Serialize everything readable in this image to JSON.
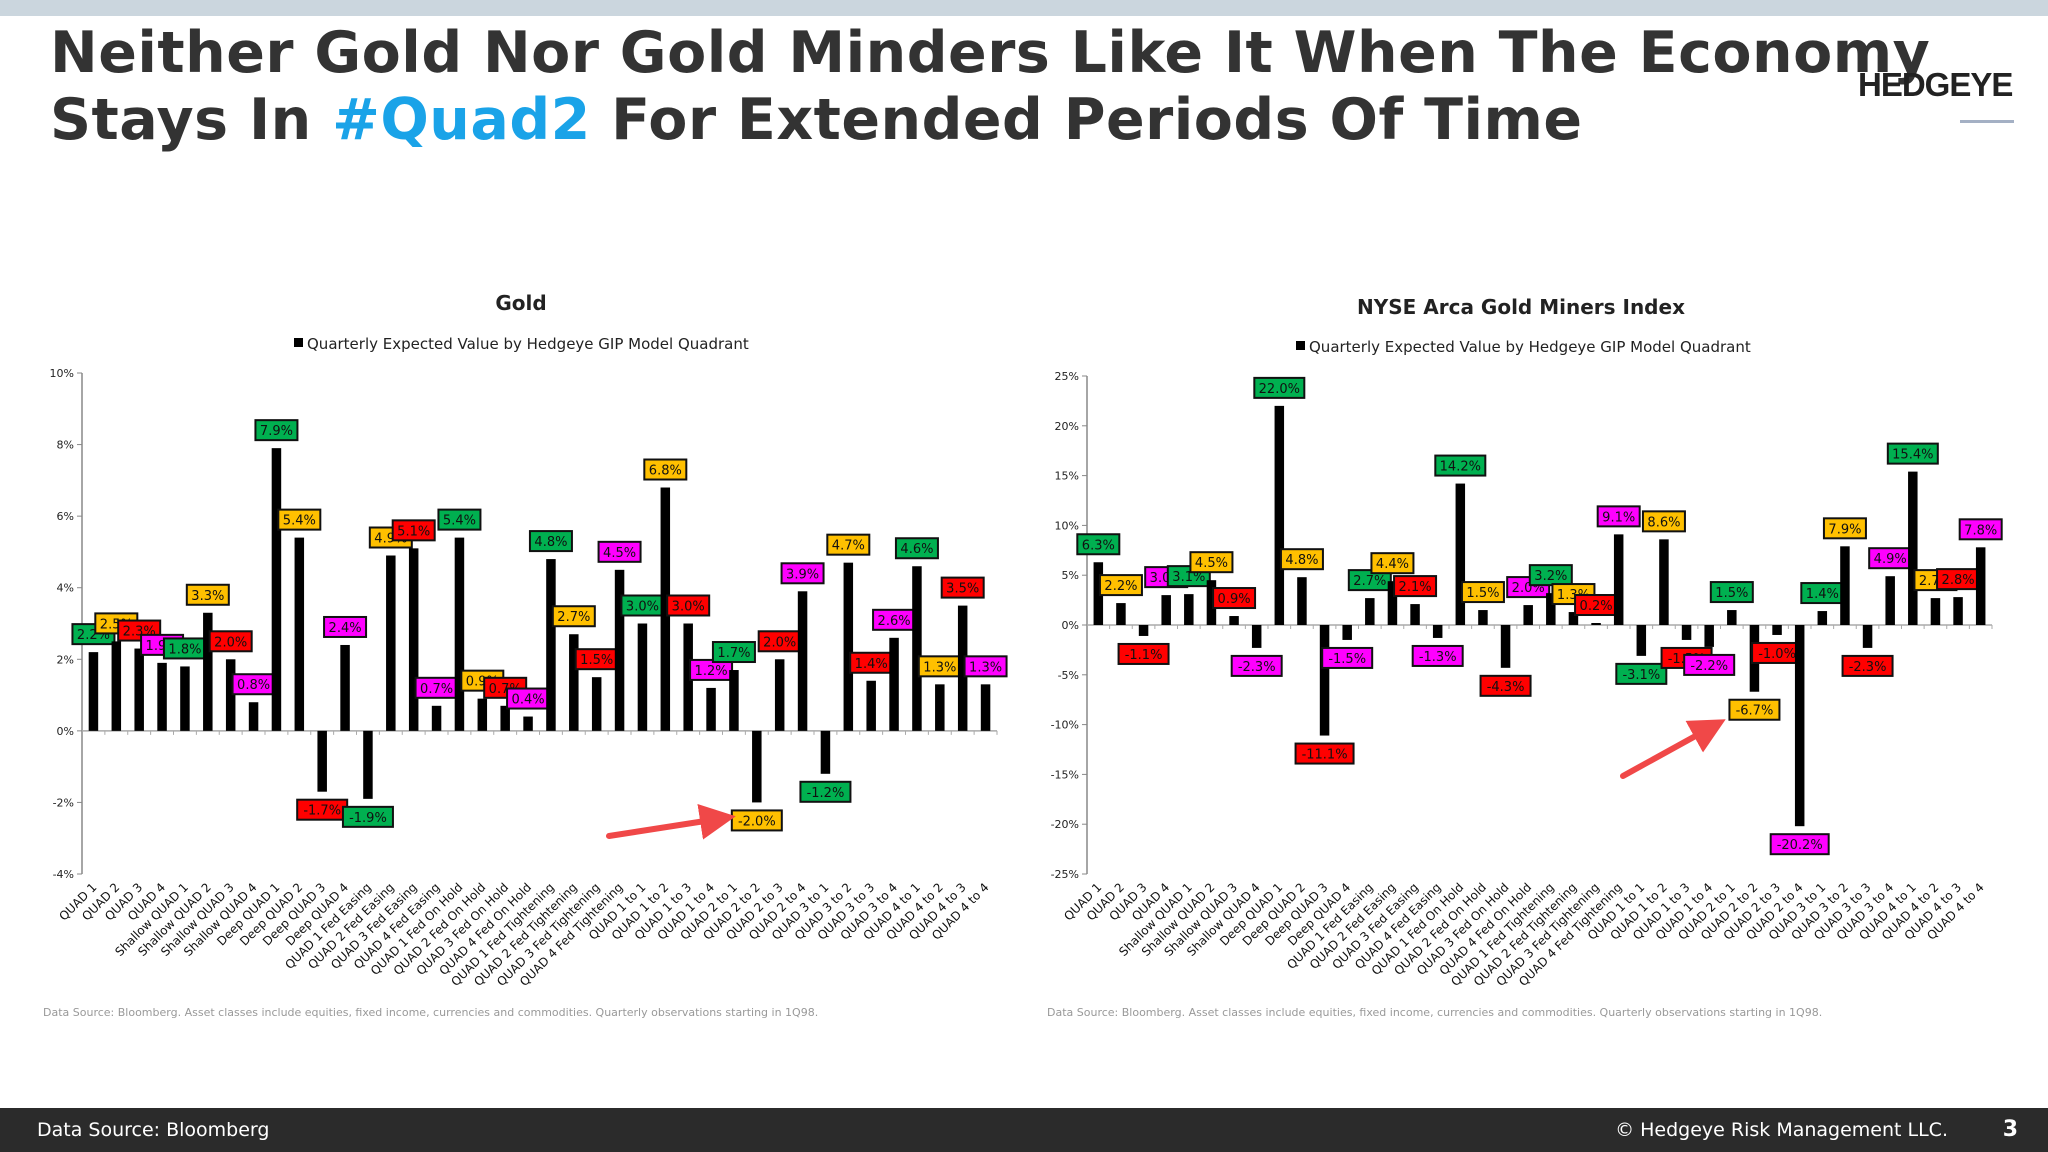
{
  "header": {
    "title_line1": "Neither Gold Nor Gold Minders Like It When The Economy",
    "title_line2_pre": "Stays In ",
    "title_highlight": "#Quad2",
    "title_line2_post": " For Extended Periods Of Time",
    "highlight_color": "#1aa3e8",
    "logo": "HEDGEYE"
  },
  "footer": {
    "source": "Data Source: Bloomberg",
    "copyright": "© Hedgeye Risk Management LLC.",
    "page": "3"
  },
  "quadrant_label_colors": [
    "#00b050",
    "#ffc000",
    "#ff0000",
    "#ff00ff"
  ],
  "chart_data": [
    {
      "type": "bar",
      "title": "Gold",
      "legend": "Quarterly Expected Value by Hedgeye GIP Model Quadrant",
      "legend_position": "top",
      "footnote": "Data Source: Bloomberg. Asset classes  include equities, fixed income, currencies and commodities. Quarterly observations starting in 1Q98.",
      "ylim": [
        -4,
        10
      ],
      "yticks": [
        -4,
        -2,
        0,
        2,
        4,
        6,
        8,
        10
      ],
      "y_unit": "%",
      "grid": false,
      "annotation": "red arrow pointing to QUAD 2 to 2 (-2.0%)",
      "categories": [
        "QUAD 1",
        "QUAD 2",
        "QUAD 3",
        "QUAD 4",
        "Shallow QUAD 1",
        "Shallow QUAD 2",
        "Shallow QUAD 3",
        "Shallow QUAD 4",
        "Deep QUAD 1",
        "Deep QUAD 2",
        "Deep QUAD 3",
        "Deep QUAD 4",
        "QUAD 1 Fed Easing",
        "QUAD 2 Fed Easing",
        "QUAD 3 Fed Easing",
        "QUAD 4 Fed Easing",
        "QUAD 1 Fed On Hold",
        "QUAD 2 Fed On Hold",
        "QUAD 3 Fed On Hold",
        "QUAD 4 Fed On Hold",
        "QUAD 1 Fed Tightening",
        "QUAD 2 Fed Tightening",
        "QUAD 3 Fed Tightening",
        "QUAD 4 Fed Tightening",
        "QUAD 1 to 1",
        "QUAD 1 to 2",
        "QUAD 1 to 3",
        "QUAD 1 to 4",
        "QUAD 2 to 1",
        "QUAD 2 to 2",
        "QUAD 2 to 3",
        "QUAD 2 to 4",
        "QUAD 3 to 1",
        "QUAD 3 to 2",
        "QUAD 3 to 3",
        "QUAD 3 to 4",
        "QUAD 4 to 1",
        "QUAD 4 to 2",
        "QUAD 4 to 3",
        "QUAD 4 to 4"
      ],
      "values": [
        2.2,
        2.5,
        2.3,
        1.9,
        1.8,
        3.3,
        2.0,
        0.8,
        7.9,
        5.4,
        -1.7,
        2.4,
        -1.9,
        4.9,
        5.1,
        0.7,
        5.4,
        0.9,
        0.7,
        0.4,
        4.8,
        2.7,
        1.5,
        4.5,
        3.0,
        6.8,
        3.0,
        1.2,
        1.7,
        -2.0,
        2.0,
        3.9,
        -1.2,
        4.7,
        1.4,
        2.6,
        4.6,
        1.3,
        3.5,
        1.3
      ]
    },
    {
      "type": "bar",
      "title": "NYSE Arca Gold Miners Index",
      "legend": "Quarterly Expected Value by Hedgeye GIP Model Quadrant",
      "legend_position": "top",
      "footnote": "Data Source: Bloomberg. Asset classes  include equities, fixed income, currencies and commodities. Quarterly observations starting in 1Q98.",
      "ylim": [
        -25,
        25
      ],
      "yticks": [
        -25,
        -20,
        -15,
        -10,
        -5,
        0,
        5,
        10,
        15,
        20,
        25
      ],
      "y_unit": "%",
      "grid": false,
      "annotation": "red arrow pointing to QUAD 2 to 2 (-6.7%)",
      "categories": [
        "QUAD 1",
        "QUAD 2",
        "QUAD 3",
        "QUAD 4",
        "Shallow QUAD 1",
        "Shallow QUAD 2",
        "Shallow QUAD 3",
        "Shallow QUAD 4",
        "Deep QUAD 1",
        "Deep QUAD 2",
        "Deep QUAD 3",
        "Deep QUAD 4",
        "QUAD 1 Fed Easing",
        "QUAD 2 Fed Easing",
        "QUAD 3 Fed Easing",
        "QUAD 4 Fed Easing",
        "QUAD 1 Fed On Hold",
        "QUAD 2 Fed On Hold",
        "QUAD 3 Fed On Hold",
        "QUAD 4 Fed On Hold",
        "QUAD 1 Fed Tightening",
        "QUAD 2 Fed Tightening",
        "QUAD 3 Fed Tightening",
        "QUAD 4 Fed Tightening",
        "QUAD 1 to 1",
        "QUAD 1 to 2",
        "QUAD 1 to 3",
        "QUAD 1 to 4",
        "QUAD 2 to 1",
        "QUAD 2 to 2",
        "QUAD 2 to 3",
        "QUAD 2 to 4",
        "QUAD 3 to 1",
        "QUAD 3 to 2",
        "QUAD 3 to 3",
        "QUAD 3 to 4",
        "QUAD 4 to 1",
        "QUAD 4 to 2",
        "QUAD 4 to 3",
        "QUAD 4 to 4"
      ],
      "values": [
        6.3,
        2.2,
        -1.1,
        3.0,
        3.1,
        4.5,
        0.9,
        -2.3,
        22.0,
        4.8,
        -11.1,
        -1.5,
        2.7,
        4.4,
        2.1,
        -1.3,
        14.2,
        1.5,
        -4.3,
        2.0,
        3.2,
        1.3,
        0.2,
        9.1,
        -3.1,
        8.6,
        -1.5,
        -2.2,
        1.5,
        -6.7,
        -1.0,
        -20.2,
        1.4,
        7.9,
        -2.3,
        4.9,
        15.4,
        2.7,
        2.8,
        7.8
      ]
    }
  ]
}
